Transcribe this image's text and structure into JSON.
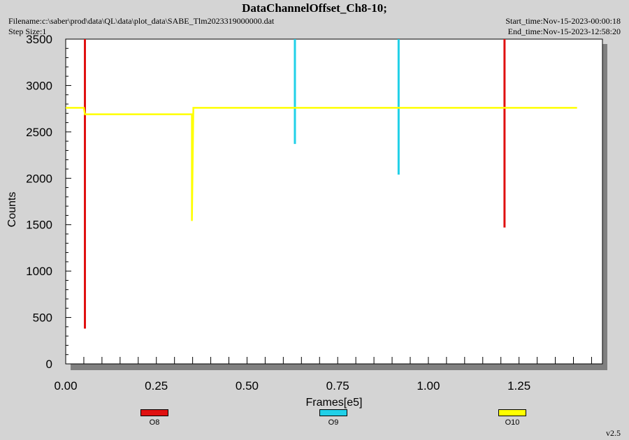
{
  "header": {
    "title": "DataChannelOffset_Ch8-10;",
    "filename": "Filename:c:\\saber\\prod\\data\\QL\\data\\plot_data\\SABE_Tlm2023319000000.dat",
    "step_size": "Step Size:1",
    "start_time": "Start_time:Nov-15-2023-00:00:18",
    "end_time": "End_time:Nov-15-2023-12:58:20",
    "version": "v2.5"
  },
  "chart_data": {
    "type": "line",
    "title": "DataChannelOffset_Ch8-10;",
    "xlabel": "Frames[e5]",
    "ylabel": "Counts",
    "xlim": [
      0,
      1.48
    ],
    "ylim": [
      0,
      3500
    ],
    "xticks": [
      0.0,
      0.25,
      0.5,
      0.75,
      1.0,
      1.25
    ],
    "xtick_labels": [
      "0.00",
      "0.25",
      "0.50",
      "0.75",
      "1.00",
      "1.25"
    ],
    "yticks": [
      0,
      500,
      1000,
      1500,
      2000,
      2500,
      3000,
      3500
    ],
    "ytick_labels": [
      "0",
      "500",
      "1000",
      "1500",
      "2000",
      "2500",
      "3000",
      "3500"
    ],
    "grid": false,
    "legend_position": "bottom",
    "series": [
      {
        "name": "O8",
        "color": "#e01010",
        "points": [
          [
            0.053,
            3500
          ],
          [
            0.053,
            380
          ],
          [
            1.21,
            3500
          ],
          [
            1.21,
            1470
          ]
        ]
      },
      {
        "name": "O9",
        "color": "#20d0e8",
        "points": [
          [
            0.632,
            3500
          ],
          [
            0.632,
            2370
          ],
          [
            0.918,
            3500
          ],
          [
            0.918,
            2040
          ]
        ]
      },
      {
        "name": "O10",
        "color": "#ffff00",
        "points": [
          [
            0.0,
            2760
          ],
          [
            0.05,
            2760
          ],
          [
            0.053,
            2690
          ],
          [
            0.348,
            2690
          ],
          [
            0.348,
            1540
          ],
          [
            0.352,
            2760
          ],
          [
            1.41,
            2760
          ]
        ]
      }
    ]
  }
}
